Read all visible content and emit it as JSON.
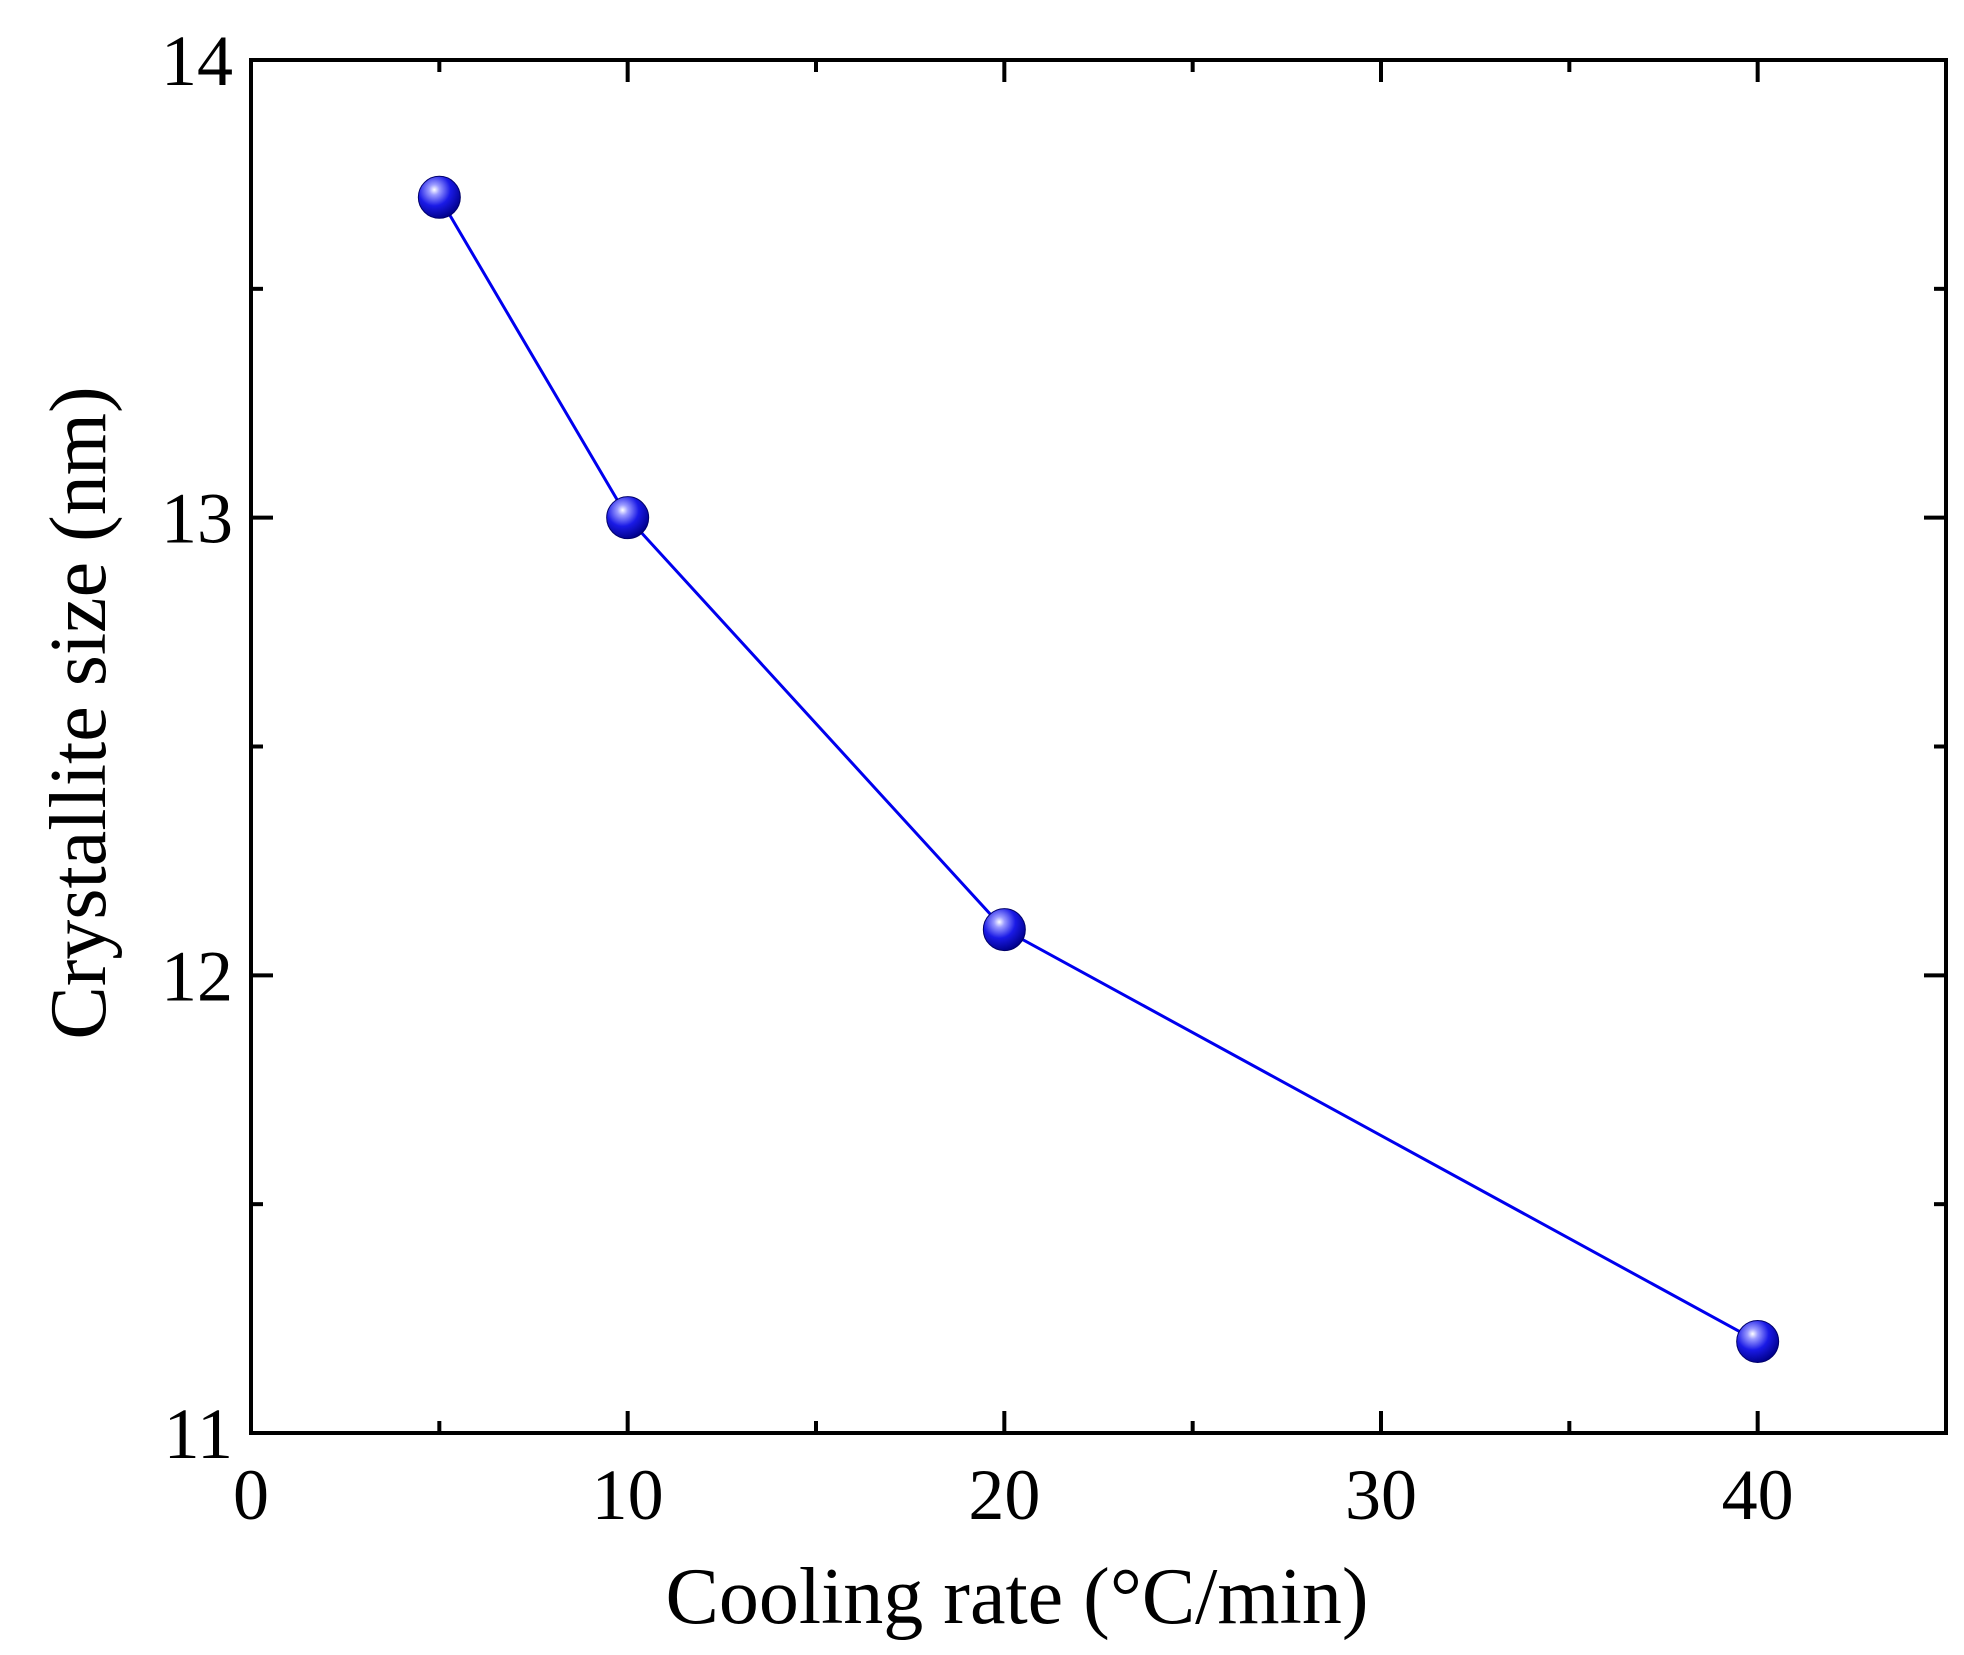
{
  "chart_data": {
    "type": "line",
    "title": "",
    "xlabel": "Cooling rate (°C/min)",
    "ylabel": "Crystallite size (nm)",
    "xlim": [
      0,
      45
    ],
    "ylim": [
      11,
      14
    ],
    "x_ticks": [
      0,
      10,
      20,
      30,
      40
    ],
    "x_tick_labels": [
      "0",
      "10",
      "20",
      "30",
      "40"
    ],
    "x_minor_ticks": [
      5,
      15,
      25,
      35
    ],
    "y_ticks": [
      11,
      12,
      13,
      14
    ],
    "y_tick_labels": [
      "11",
      "12",
      "13",
      "14"
    ],
    "y_minor_ticks": [
      11.5,
      12.5,
      13.5
    ],
    "grid": false,
    "series": [
      {
        "name": "Crystallite size",
        "x": [
          5,
          10,
          20,
          40
        ],
        "y": [
          13.7,
          13.0,
          12.1,
          11.2
        ],
        "color": "#0000ee",
        "marker": "sphere"
      }
    ]
  }
}
